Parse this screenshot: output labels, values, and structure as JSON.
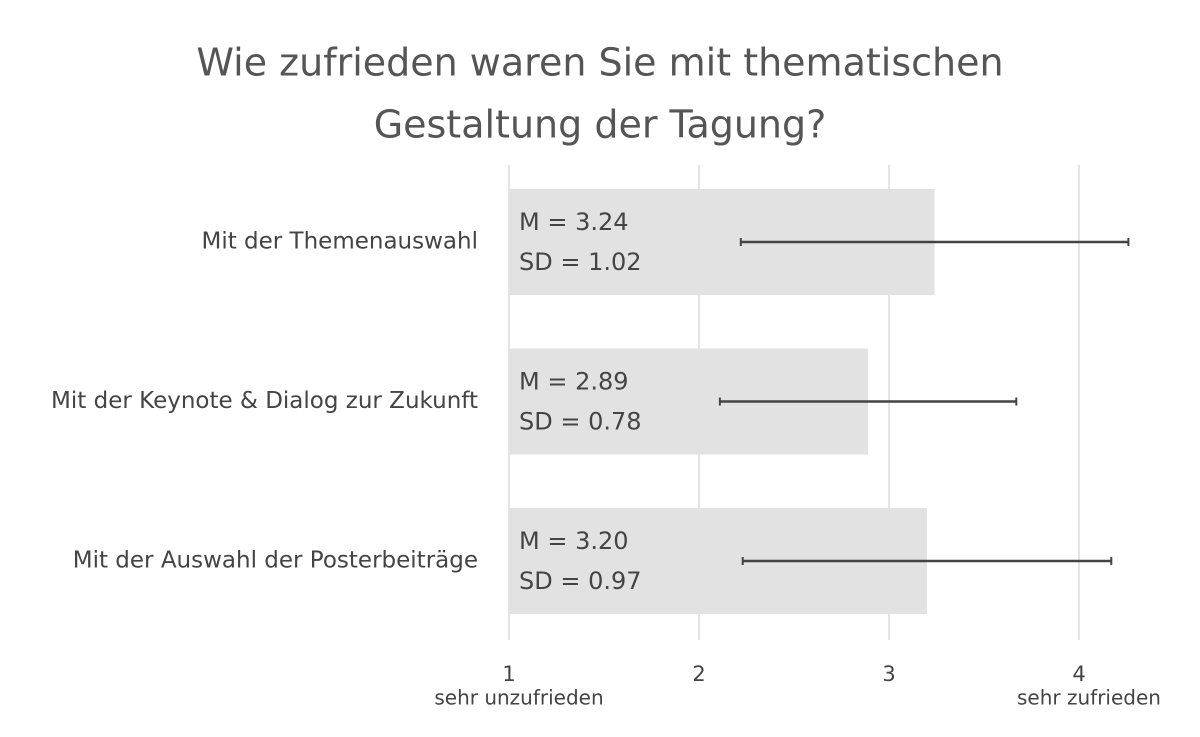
{
  "chart_data": {
    "type": "hbar_error",
    "title": [
      "Wie zufrieden waren Sie mit thematischen",
      "Gestaltung der Tagung?"
    ],
    "categories": [
      "Mit der Themenauswahl",
      "Mit der Keynote & Dialog zur Zukunft",
      "Mit der Auswahl der Posterbeiträge"
    ],
    "values": [
      3.24,
      2.89,
      3.2
    ],
    "value_labels": [
      "M = 3.24",
      "M = 2.89",
      "M = 3.20"
    ],
    "errors": [
      1.02,
      0.78,
      0.97
    ],
    "error_labels": [
      "SD = 1.02",
      "SD = 0.78",
      "SD = 0.97"
    ],
    "color": "#e2e2e2",
    "error_color": "#444444",
    "xlim": [
      1,
      4.5
    ],
    "xticks": [
      1,
      2,
      3,
      4
    ],
    "grid": true,
    "x_end_labels": {
      "low": "sehr unzufrieden",
      "high": "sehr zufrieden"
    }
  }
}
